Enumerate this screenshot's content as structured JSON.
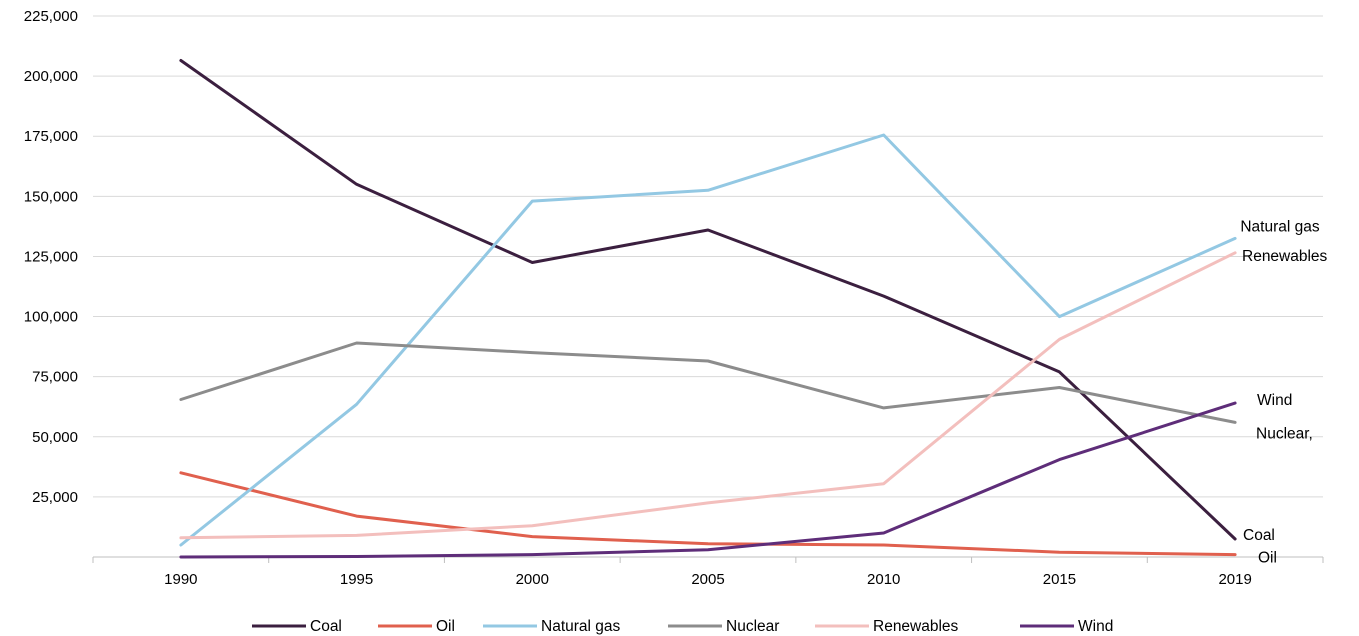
{
  "chart_data": {
    "type": "line",
    "title": "",
    "xlabel": "",
    "ylabel": "",
    "categories": [
      "1990",
      "1995",
      "2000",
      "2005",
      "2010",
      "2015",
      "2019"
    ],
    "ylim": [
      0,
      225000
    ],
    "yticks": [
      "25,000",
      "50,000",
      "75,000",
      "100,000",
      "125,000",
      "150,000",
      "175,000",
      "200,000",
      "225,000"
    ],
    "grid": "horizontal",
    "legend_position": "bottom",
    "series": [
      {
        "name": "Coal",
        "color": "#3b1f3f",
        "values": [
          206500,
          155000,
          122500,
          136000,
          108500,
          77000,
          7500
        ]
      },
      {
        "name": "Oil",
        "color": "#e0604e",
        "values": [
          35000,
          17000,
          8500,
          5500,
          5000,
          2000,
          1000
        ]
      },
      {
        "name": "Natural gas",
        "color": "#93c8e3",
        "values": [
          5000,
          63500,
          148000,
          152500,
          175500,
          100000,
          132500
        ]
      },
      {
        "name": "Nuclear",
        "color": "#8c8c8c",
        "values": [
          65500,
          89000,
          85000,
          81500,
          62000,
          70500,
          56000
        ]
      },
      {
        "name": "Renewables",
        "color": "#f3bfbd",
        "values": [
          8000,
          9000,
          13000,
          22500,
          30500,
          90500,
          126500
        ]
      },
      {
        "name": "Wind",
        "color": "#5e2d79",
        "values": [
          0,
          200,
          1000,
          3000,
          10000,
          40500,
          64000
        ]
      }
    ],
    "end_labels": [
      {
        "text": "Natural gas",
        "series": "Natural gas"
      },
      {
        "text": "Renewables",
        "series": "Renewables"
      },
      {
        "text": "Wind",
        "series": "Wind"
      },
      {
        "text": "Nuclear,",
        "series": "Nuclear"
      },
      {
        "text": "Coal",
        "series": "Coal"
      },
      {
        "text": "Oil",
        "series": "Oil"
      }
    ]
  }
}
